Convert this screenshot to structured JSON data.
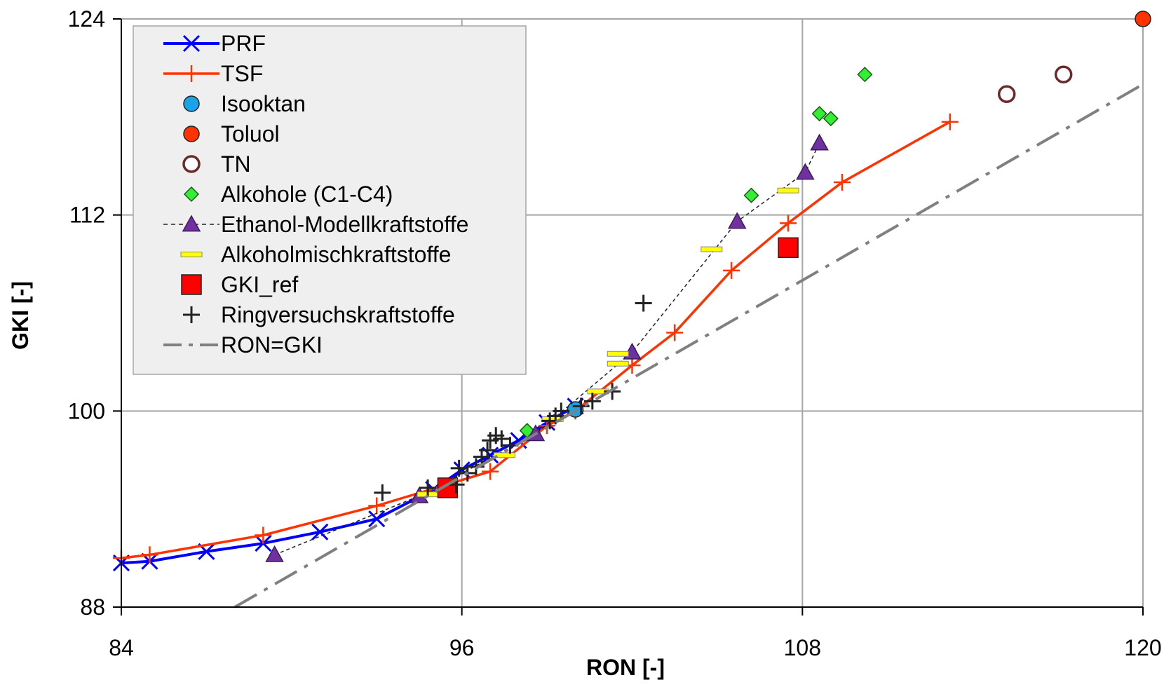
{
  "chart_data": {
    "type": "scatter",
    "title": "",
    "xlabel": "RON [-]",
    "ylabel": "GKI [-]",
    "xlim": [
      84,
      120
    ],
    "ylim": [
      88,
      124
    ],
    "xticks": [
      84,
      96,
      108,
      120
    ],
    "yticks": [
      88,
      100,
      112,
      124
    ],
    "grid": true,
    "legend_position": "top-left",
    "series": [
      {
        "name": "PRF",
        "style": "line-x",
        "color": "#0000ff",
        "points": [
          [
            84,
            90.7
          ],
          [
            85,
            90.8
          ],
          [
            87,
            91.4
          ],
          [
            89,
            91.9
          ],
          [
            91,
            92.6
          ],
          [
            93,
            93.4
          ],
          [
            95,
            95.2
          ],
          [
            96,
            96.4
          ],
          [
            97,
            97.3
          ],
          [
            98,
            98.2
          ],
          [
            99,
            99.3
          ],
          [
            100,
            100.3
          ]
        ]
      },
      {
        "name": "TSF",
        "style": "line-plus",
        "color": "#ff3300",
        "points": [
          [
            84,
            91.0
          ],
          [
            85,
            91.2
          ],
          [
            89,
            92.4
          ],
          [
            93,
            94.2
          ],
          [
            97,
            96.3
          ],
          [
            99,
            99.1
          ],
          [
            100,
            100.0
          ],
          [
            102,
            102.8
          ],
          [
            103.5,
            104.8
          ],
          [
            105.5,
            108.6
          ],
          [
            107.5,
            111.5
          ],
          [
            109.4,
            114.0
          ],
          [
            113.2,
            117.7
          ]
        ]
      },
      {
        "name": "Isooktan",
        "style": "circle",
        "color": "#1aa3e8",
        "points": [
          [
            100,
            100.1
          ]
        ]
      },
      {
        "name": "Toluol",
        "style": "circle",
        "color": "#ff3300",
        "points": [
          [
            120,
            124
          ]
        ]
      },
      {
        "name": "TN",
        "style": "open-circle",
        "color": "#6b2a2a",
        "points": [
          [
            115.2,
            119.4
          ],
          [
            117.2,
            120.6
          ]
        ]
      },
      {
        "name": "Alkohole (C1-C4)",
        "style": "diamond",
        "color": "#33ee33",
        "points": [
          [
            98.3,
            98.8
          ],
          [
            108.6,
            118.2
          ],
          [
            109,
            117.9
          ],
          [
            110.2,
            120.6
          ],
          [
            106.2,
            113.2
          ]
        ]
      },
      {
        "name": "Ethanol-Modellkraftstoffe",
        "style": "dashed-triangle",
        "color": "#7030a0",
        "points": [
          [
            89.4,
            91.2
          ],
          [
            94.5,
            94.8
          ],
          [
            98.6,
            98.6
          ],
          [
            102,
            103.6
          ],
          [
            105.7,
            111.6
          ],
          [
            108.1,
            114.6
          ],
          [
            108.6,
            116.4
          ]
        ]
      },
      {
        "name": "Alkoholmischkraftstoffe",
        "style": "dash-marker",
        "color": "#ffff00",
        "points": [
          [
            94.8,
            94.9
          ],
          [
            97.5,
            97.3
          ],
          [
            99.2,
            99.5
          ],
          [
            100.8,
            101.2
          ],
          [
            101.5,
            103.5
          ],
          [
            101.5,
            102.9
          ],
          [
            104.8,
            109.9
          ],
          [
            107.5,
            113.5
          ]
        ]
      },
      {
        "name": "GKI_ref",
        "style": "square",
        "color": "#ff0000",
        "points": [
          [
            95.5,
            95.3
          ],
          [
            107.5,
            110.0
          ]
        ]
      },
      {
        "name": "Ringversuchskraftstoffe",
        "style": "plus",
        "color": "#222222",
        "points": [
          [
            93.2,
            95.0
          ],
          [
            94.8,
            95.3
          ],
          [
            95.8,
            95.5
          ],
          [
            96.2,
            96.2
          ],
          [
            96.5,
            96.6
          ],
          [
            95.9,
            96.5
          ],
          [
            96.7,
            97.2
          ],
          [
            96.9,
            97.6
          ],
          [
            97.0,
            98.2
          ],
          [
            97.2,
            98.5
          ],
          [
            97.4,
            98.3
          ],
          [
            97.7,
            97.9
          ],
          [
            99.1,
            99.4
          ],
          [
            99.3,
            99.7
          ],
          [
            99.5,
            100.0
          ],
          [
            100.2,
            100.3
          ],
          [
            100.6,
            100.6
          ],
          [
            101.3,
            101.2
          ],
          [
            102.4,
            106.6
          ]
        ]
      },
      {
        "name": "RON=GKI",
        "style": "dash-dot-line",
        "color": "#808080",
        "points": [
          [
            88,
            88
          ],
          [
            120,
            120
          ]
        ]
      }
    ]
  }
}
